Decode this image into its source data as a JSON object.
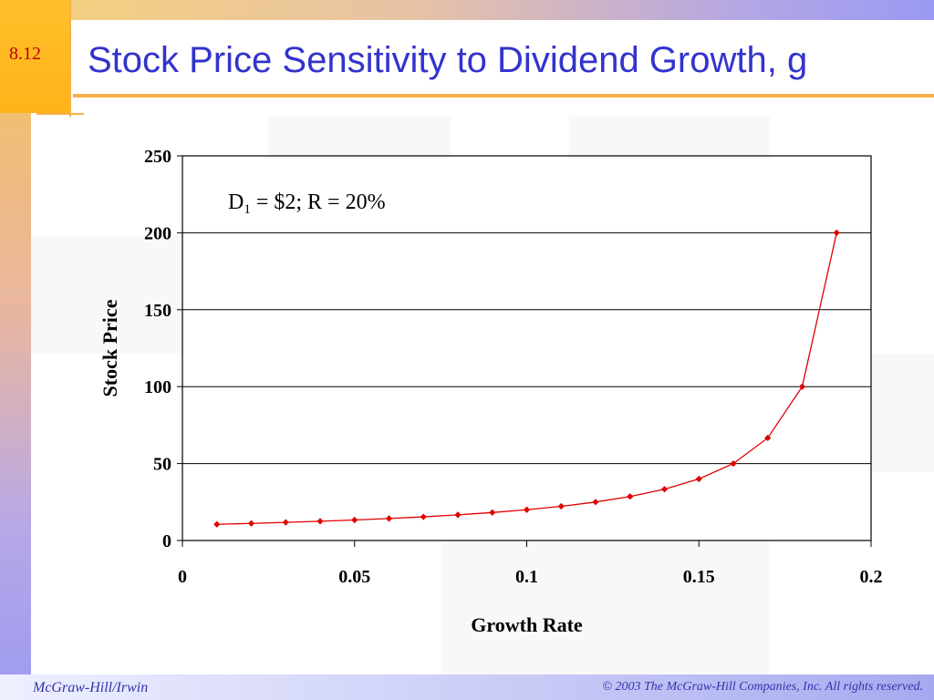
{
  "slide": {
    "number": "8.12",
    "title": "Stock Price Sensitivity to Dividend Growth, g",
    "footer_left": "McGraw-Hill/Irwin",
    "footer_right": "© 2003 The McGraw-Hill Companies, Inc. All rights reserved."
  },
  "colors": {
    "title": "#3333cc",
    "series": "#e00000",
    "slide_number": "#c00000"
  },
  "chart_data": {
    "type": "line",
    "title": "",
    "annotation": {
      "prefix": "D",
      "subscript": "1",
      "rest": " = $2; R = 20%"
    },
    "xlabel": "Growth Rate",
    "ylabel": "Stock Price",
    "xlim": [
      0,
      0.2
    ],
    "ylim": [
      0,
      250
    ],
    "x_ticks": [
      "0",
      "0.05",
      "0.1",
      "0.15",
      "0.2"
    ],
    "y_ticks": [
      "0",
      "50",
      "100",
      "150",
      "200",
      "250"
    ],
    "grid": {
      "horizontal": true,
      "vertical": false
    },
    "legend": "none",
    "series": [
      {
        "x": [
          0.01,
          0.02,
          0.03,
          0.04,
          0.05,
          0.06,
          0.07,
          0.08,
          0.09,
          0.1,
          0.11,
          0.12,
          0.13,
          0.14,
          0.15,
          0.16,
          0.17,
          0.18,
          0.19
        ],
        "y": [
          10.53,
          11.11,
          11.76,
          12.5,
          13.33,
          14.29,
          15.38,
          16.67,
          18.18,
          20.0,
          22.22,
          25.0,
          28.57,
          33.33,
          40.0,
          50.0,
          66.67,
          100.0,
          200.0
        ]
      }
    ]
  }
}
